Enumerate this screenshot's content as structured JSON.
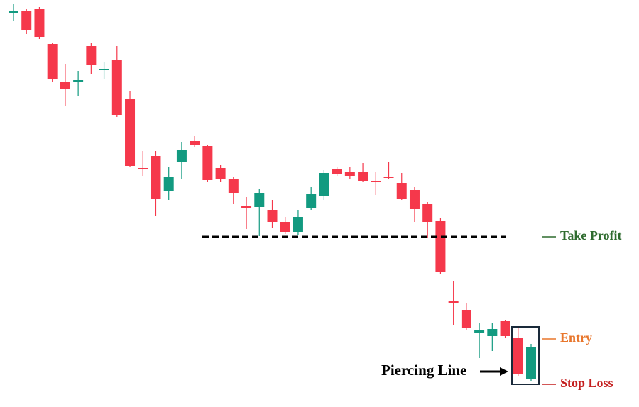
{
  "chart_data": {
    "type": "candlestick",
    "ylim": [
      0,
      574
    ],
    "up_color": "#129a80",
    "down_color": "#f5384b",
    "open": [
      556,
      559,
      562,
      512,
      459,
      460,
      509,
      475,
      489,
      434,
      337,
      354,
      305,
      346,
      375,
      368,
      337,
      322,
      283,
      282,
      278,
      261,
      247,
      280,
      297,
      336,
      331,
      331,
      319,
      325,
      316,
      306,
      286,
      263,
      150,
      137,
      104,
      100,
      121,
      98,
      40
    ],
    "high": [
      569,
      561,
      564,
      514,
      484,
      474,
      514,
      486,
      509,
      446,
      361,
      361,
      339,
      374,
      382,
      370,
      342,
      324,
      296,
      307,
      292,
      268,
      278,
      310,
      334,
      338,
      338,
      344,
      331,
      346,
      330,
      310,
      289,
      266,
      178,
      146,
      119,
      119,
      122,
      111,
      89
    ],
    "low": [
      544,
      526,
      519,
      459,
      424,
      439,
      469,
      462,
      409,
      338,
      326,
      269,
      292,
      322,
      367,
      318,
      318,
      286,
      251,
      241,
      252,
      244,
      242,
      278,
      292,
      326,
      322,
      317,
      299,
      321,
      292,
      261,
      239,
      188,
      116,
      109,
      69,
      79,
      98,
      44,
      36
    ],
    "close": [
      558,
      531,
      522,
      463,
      448,
      461,
      482,
      477,
      412,
      340,
      335,
      294,
      324,
      362,
      370,
      320,
      322,
      302,
      281,
      302,
      261,
      247,
      268,
      301,
      330,
      329,
      326,
      319,
      317,
      323,
      294,
      279,
      261,
      190,
      147,
      111,
      108,
      110,
      100,
      46,
      84
    ],
    "levels": [
      {
        "label": "Take Profit",
        "value": 240,
        "color": "#2e6b2e",
        "dashed": true
      },
      {
        "label": "Entry",
        "value": 96,
        "color": "#e8762c",
        "dashed": false
      },
      {
        "label": "Stop Loss",
        "value": 32,
        "color": "#c41e1e",
        "dashed": false
      }
    ],
    "annotation": "Piercing Line"
  }
}
